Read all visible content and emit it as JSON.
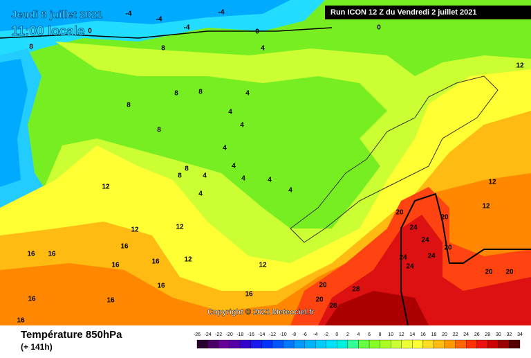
{
  "header": {
    "date": "Jeudi 8 juillet 2021",
    "time": "11:00 locale",
    "run": "Run ICON 12 Z du Vendredi 2 juillet 2021"
  },
  "copyright": "Copyright © 2021 Meteociel.fr",
  "legend": {
    "title": "Température 850hPa",
    "lead": "(+ 141h)",
    "ticks": [
      -26,
      -24,
      -22,
      -20,
      -18,
      -16,
      -14,
      -12,
      -10,
      -8,
      -6,
      -4,
      -2,
      0,
      2,
      4,
      6,
      8,
      10,
      12,
      14,
      16,
      18,
      20,
      22,
      24,
      26,
      28,
      30,
      32,
      34
    ],
    "colors": [
      "#2a0030",
      "#4a0066",
      "#660099",
      "#5500aa",
      "#3300cc",
      "#1a1aee",
      "#0033ff",
      "#0055ff",
      "#0077ff",
      "#0099ff",
      "#00b3ff",
      "#00ccff",
      "#00e0ff",
      "#00f0e0",
      "#33ff99",
      "#66ff44",
      "#88ff22",
      "#aaff22",
      "#ccff33",
      "#eeff33",
      "#ffff33",
      "#ffdd22",
      "#ffbb11",
      "#ff9900",
      "#ff6600",
      "#ff3300",
      "#ee1111",
      "#cc0000",
      "#990000",
      "#550000"
    ]
  },
  "contour_labels": [
    -4,
    -4,
    -4,
    -4,
    0,
    0,
    0,
    8,
    8,
    8,
    8,
    4,
    4,
    4,
    4,
    4,
    4,
    8,
    8,
    8,
    4,
    4,
    4,
    12,
    12,
    12,
    12,
    12,
    12,
    16,
    16,
    16,
    16,
    16,
    16,
    16,
    16,
    20,
    20,
    20,
    20,
    20,
    24,
    24,
    24,
    24,
    24,
    28,
    28,
    20,
    20,
    16,
    16,
    12,
    12,
    4,
    4,
    8
  ]
}
